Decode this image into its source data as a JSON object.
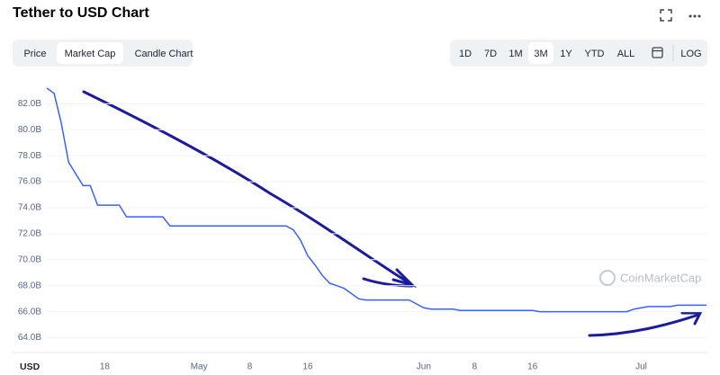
{
  "header": {
    "title": "Tether to USD Chart"
  },
  "tabs": [
    "Price",
    "Market Cap",
    "Candle Chart"
  ],
  "active_tab": 1,
  "ranges": [
    "1D",
    "7D",
    "1M",
    "3M",
    "1Y",
    "YTD",
    "ALL"
  ],
  "active_range": 3,
  "log_button": "LOG",
  "chart_data": {
    "type": "line",
    "watermark": "CoinMarketCap",
    "unit_label": "USD",
    "categories": [
      null,
      null,
      null,
      null,
      null,
      null,
      null,
      null,
      "18",
      null,
      null,
      null,
      null,
      null,
      null,
      null,
      null,
      null,
      null,
      null,
      null,
      "May",
      null,
      null,
      null,
      null,
      null,
      null,
      "8",
      null,
      null,
      null,
      null,
      null,
      null,
      null,
      "16",
      null,
      null,
      null,
      null,
      null,
      null,
      null,
      null,
      null,
      null,
      null,
      null,
      null,
      null,
      null,
      "Jun",
      null,
      null,
      null,
      null,
      null,
      null,
      "8",
      null,
      null,
      null,
      null,
      null,
      null,
      null,
      "16",
      null,
      null,
      null,
      null,
      null,
      null,
      null,
      null,
      null,
      null,
      null,
      null,
      null,
      null,
      "Jul",
      null,
      null,
      null,
      null,
      null,
      null,
      null,
      null,
      null
    ],
    "series": [
      {
        "name": "Market Cap",
        "color": "#3861fb",
        "values": [
          83.2,
          82.8,
          80.5,
          77.5,
          76.6,
          75.7,
          75.7,
          74.2,
          74.2,
          74.2,
          74.2,
          73.3,
          73.3,
          73.3,
          73.3,
          73.3,
          73.3,
          72.6,
          72.6,
          72.6,
          72.6,
          72.6,
          72.6,
          72.6,
          72.6,
          72.6,
          72.6,
          72.6,
          72.6,
          72.6,
          72.6,
          72.6,
          72.6,
          72.6,
          72.3,
          71.5,
          70.3,
          69.6,
          68.8,
          68.2,
          68.0,
          67.8,
          67.4,
          67.0,
          66.9,
          66.9,
          66.9,
          66.9,
          66.9,
          66.9,
          66.9,
          66.6,
          66.3,
          66.2,
          66.2,
          66.2,
          66.2,
          66.1,
          66.1,
          66.1,
          66.1,
          66.1,
          66.1,
          66.1,
          66.1,
          66.1,
          66.1,
          66.1,
          66.0,
          66.0,
          66.0,
          66.0,
          66.0,
          66.0,
          66.0,
          66.0,
          66.0,
          66.0,
          66.0,
          66.0,
          66.0,
          66.2,
          66.3,
          66.4,
          66.4,
          66.4,
          66.4,
          66.5,
          66.5,
          66.5,
          66.5,
          66.5
        ]
      }
    ],
    "ylim": [
      63,
      83.2
    ],
    "yticks": [
      {
        "value": 64,
        "label": "64.0B"
      },
      {
        "value": 66,
        "label": "66.0B"
      },
      {
        "value": 68,
        "label": "68.0B"
      },
      {
        "value": 70,
        "label": "70.0B"
      },
      {
        "value": 72,
        "label": "72.0B"
      },
      {
        "value": 74,
        "label": "74.0B"
      },
      {
        "value": 76,
        "label": "76.0B"
      },
      {
        "value": 78,
        "label": "78.0B"
      },
      {
        "value": 80,
        "label": "80.0B"
      },
      {
        "value": 82,
        "label": "82.0B"
      }
    ],
    "grid": true
  }
}
